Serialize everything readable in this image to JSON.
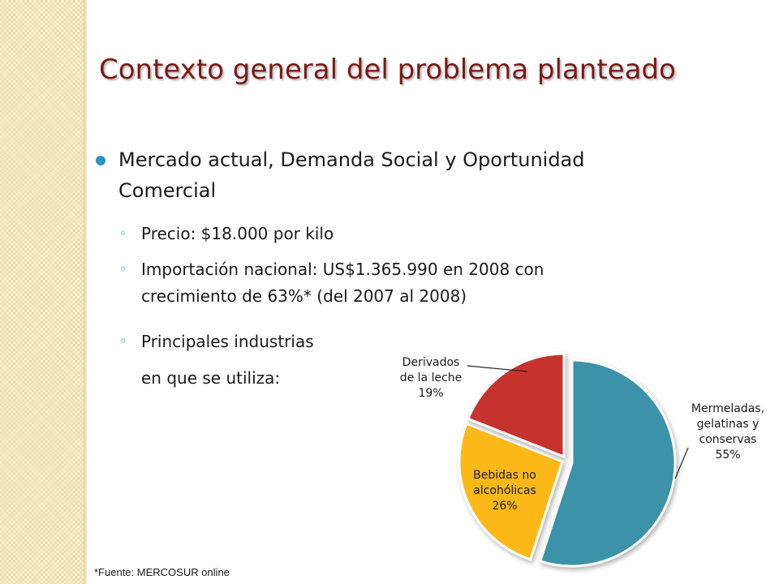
{
  "slide": {
    "title": "Contexto general del problema planteado",
    "bullet_main_line1": "Mercado actual, Demanda Social y Oportunidad",
    "bullet_main_line2": "Comercial",
    "sub_price": "Precio: $18.000 por kilo",
    "sub_import_line1": "Importación nacional: US$1.365.990 en 2008 con",
    "sub_import_line2": "crecimiento de 63%* (del 2007 al 2008)",
    "sub_industries_line1": "Principales industrias",
    "sub_industries_line2": "en que se utiliza:",
    "footnote": "*Fuente: MERCOSUR online"
  },
  "chart_data": {
    "type": "pie",
    "slices": [
      {
        "label_lines": [
          "Mermeladas,",
          "gelatinas y",
          "conservas",
          "55%"
        ],
        "value": 55,
        "color": "#3a92a9"
      },
      {
        "label_lines": [
          "Bebidas no",
          "alcohólicas",
          "26%"
        ],
        "value": 26,
        "color": "#fbb817"
      },
      {
        "label_lines": [
          "Derivados",
          "de la leche",
          "19%"
        ],
        "value": 19,
        "color": "#c8302f"
      }
    ]
  }
}
